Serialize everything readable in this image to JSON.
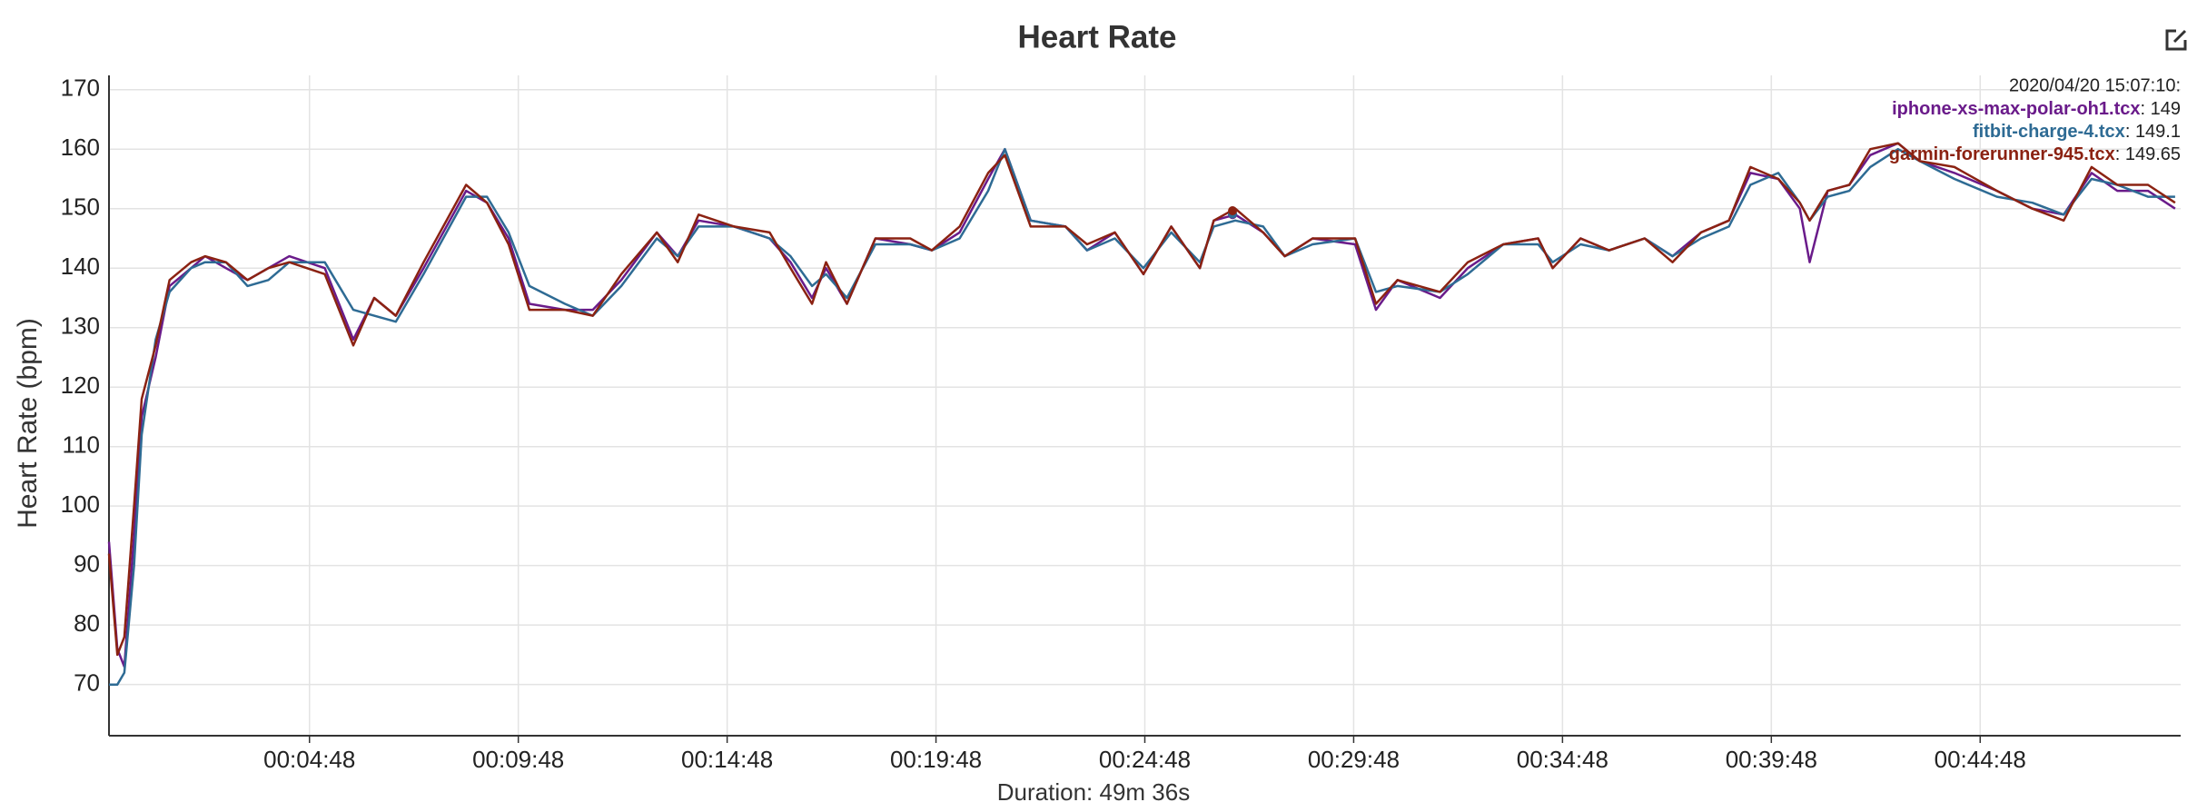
{
  "chart_data": {
    "type": "line",
    "title": "Heart Rate",
    "xlabel": "Duration: 49m 36s",
    "ylabel": "Heart Rate (bpm)",
    "xlim": [
      0,
      2976
    ],
    "ylim": [
      61.4,
      172.4
    ],
    "grid": true,
    "yticks": [
      70,
      80,
      90,
      100,
      110,
      120,
      130,
      140,
      150,
      160,
      170
    ],
    "xticks": [
      {
        "value": 288,
        "label": "00:04:48"
      },
      {
        "value": 588,
        "label": "00:09:48"
      },
      {
        "value": 888,
        "label": "00:14:48"
      },
      {
        "value": 1188,
        "label": "00:19:48"
      },
      {
        "value": 1488,
        "label": "00:24:48"
      },
      {
        "value": 1788,
        "label": "00:29:48"
      },
      {
        "value": 2088,
        "label": "00:34:48"
      },
      {
        "value": 2388,
        "label": "00:39:48"
      },
      {
        "value": 2688,
        "label": "00:44:48"
      }
    ],
    "x": [
      0,
      12,
      22,
      36,
      47,
      67,
      87,
      118,
      138,
      168,
      199,
      229,
      259,
      310,
      351,
      381,
      412,
      452,
      513,
      543,
      574,
      604,
      655,
      695,
      736,
      787,
      817,
      847,
      898,
      949,
      979,
      1010,
      1030,
      1060,
      1101,
      1151,
      1182,
      1222,
      1263,
      1287,
      1324,
      1374,
      1405,
      1445,
      1486,
      1526,
      1567,
      1587,
      1618,
      1658,
      1689,
      1729,
      1790,
      1820,
      1851,
      1912,
      1952,
      2003,
      2053,
      2074,
      2114,
      2155,
      2206,
      2246,
      2287,
      2327,
      2358,
      2398,
      2429,
      2443,
      2469,
      2500,
      2530,
      2570,
      2601,
      2651,
      2712,
      2763,
      2808,
      2848,
      2885,
      2929,
      2968
    ],
    "series": [
      {
        "name": "iphone-xs-max-polar-oh1.tcx",
        "color": "#6a1b8a",
        "values": [
          94,
          76,
          73,
          95,
          115,
          125,
          137,
          140,
          142,
          140,
          138,
          140,
          142,
          140,
          128,
          135,
          132,
          140,
          153,
          151,
          145,
          134,
          133,
          133,
          138,
          146,
          142,
          148,
          147,
          145,
          141,
          135,
          140,
          134,
          145,
          144,
          143,
          146,
          155,
          160,
          148,
          147,
          143,
          146,
          139,
          147,
          140,
          148,
          149,
          146,
          142,
          145,
          144,
          133,
          138,
          135,
          140,
          144,
          145,
          140,
          145,
          143,
          145,
          142,
          146,
          148,
          156,
          155,
          150,
          141,
          153,
          154,
          159,
          161,
          158,
          156,
          153,
          150,
          149,
          156,
          153,
          153,
          150
        ]
      },
      {
        "name": "fitbit-charge-4.tcx",
        "color": "#2e6b94",
        "values": [
          70,
          70,
          72,
          90,
          112,
          128,
          136,
          140,
          141,
          141,
          137,
          138,
          141,
          141,
          133,
          132,
          131,
          139,
          152,
          152,
          146,
          137,
          134,
          132,
          137,
          145,
          142,
          147,
          147,
          145,
          142,
          137,
          139,
          135,
          144,
          144,
          143,
          145,
          153,
          160,
          148,
          147,
          143,
          145,
          140,
          146,
          141,
          147,
          148,
          147,
          142,
          144,
          145,
          136,
          137,
          136,
          139,
          144,
          144,
          141,
          144,
          143,
          145,
          142,
          145,
          147,
          154,
          156,
          151,
          148,
          152,
          153,
          157,
          160,
          158,
          155,
          152,
          151,
          149,
          155,
          154,
          152,
          152
        ]
      },
      {
        "name": "garmin-forerunner-945.tcx",
        "color": "#8b2212",
        "values": [
          92,
          75,
          78,
          100,
          118,
          127,
          138,
          141,
          142,
          141,
          138,
          140,
          141,
          139,
          127,
          135,
          132,
          141,
          154,
          151,
          144,
          133,
          133,
          132,
          139,
          146,
          141,
          149,
          147,
          146,
          140,
          134,
          141,
          134,
          145,
          145,
          143,
          147,
          156,
          159,
          147,
          147,
          144,
          146,
          139,
          147,
          140,
          148,
          150,
          146,
          142,
          145,
          145,
          134,
          138,
          136,
          141,
          144,
          145,
          140,
          145,
          143,
          145,
          141,
          146,
          148,
          157,
          155,
          151,
          148,
          153,
          154,
          160,
          161,
          158,
          157,
          153,
          150,
          148,
          157,
          154,
          154,
          151
        ]
      }
    ],
    "hover": {
      "time": "2020/04/20 15:07:10:",
      "x": 1614,
      "separator": ": ",
      "values": [
        149,
        149.1,
        149.65
      ]
    }
  }
}
